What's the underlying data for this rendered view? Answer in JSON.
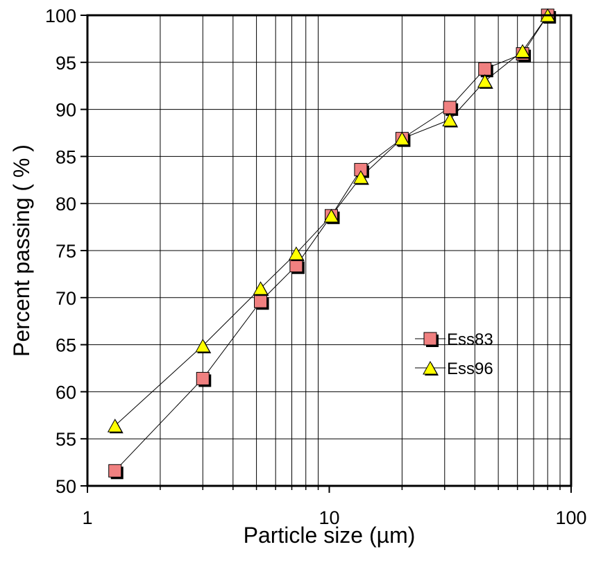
{
  "chart_data": {
    "type": "scatter",
    "xlabel": "Particle size (µm)",
    "ylabel": "Percent passing ( % )",
    "x_scale": "log",
    "xlim": [
      1,
      100
    ],
    "ylim": [
      50,
      100
    ],
    "x_ticks": [
      "1",
      "10",
      "100"
    ],
    "y_ticks": [
      "50",
      "55",
      "60",
      "65",
      "70",
      "75",
      "80",
      "85",
      "90",
      "95",
      "100"
    ],
    "grid": true,
    "legend_position": "right",
    "series": [
      {
        "name": "Ess83",
        "marker": "square",
        "color": "#f08080",
        "x": [
          1.3,
          3.0,
          5.2,
          7.3,
          10.2,
          13.5,
          20.0,
          31.5,
          44.0,
          63.0,
          80.0
        ],
        "y": [
          51.6,
          61.4,
          69.6,
          73.4,
          78.7,
          83.6,
          86.9,
          90.2,
          94.3,
          95.9,
          100.0
        ]
      },
      {
        "name": "Ess96",
        "marker": "triangle",
        "color": "#ffff00",
        "x": [
          1.3,
          3.0,
          5.2,
          7.3,
          10.2,
          13.5,
          20.0,
          31.5,
          44.0,
          63.0,
          80.0
        ],
        "y": [
          56.4,
          64.9,
          71.0,
          74.7,
          78.7,
          82.8,
          86.9,
          88.9,
          93.0,
          96.2,
          100.0
        ]
      }
    ]
  }
}
